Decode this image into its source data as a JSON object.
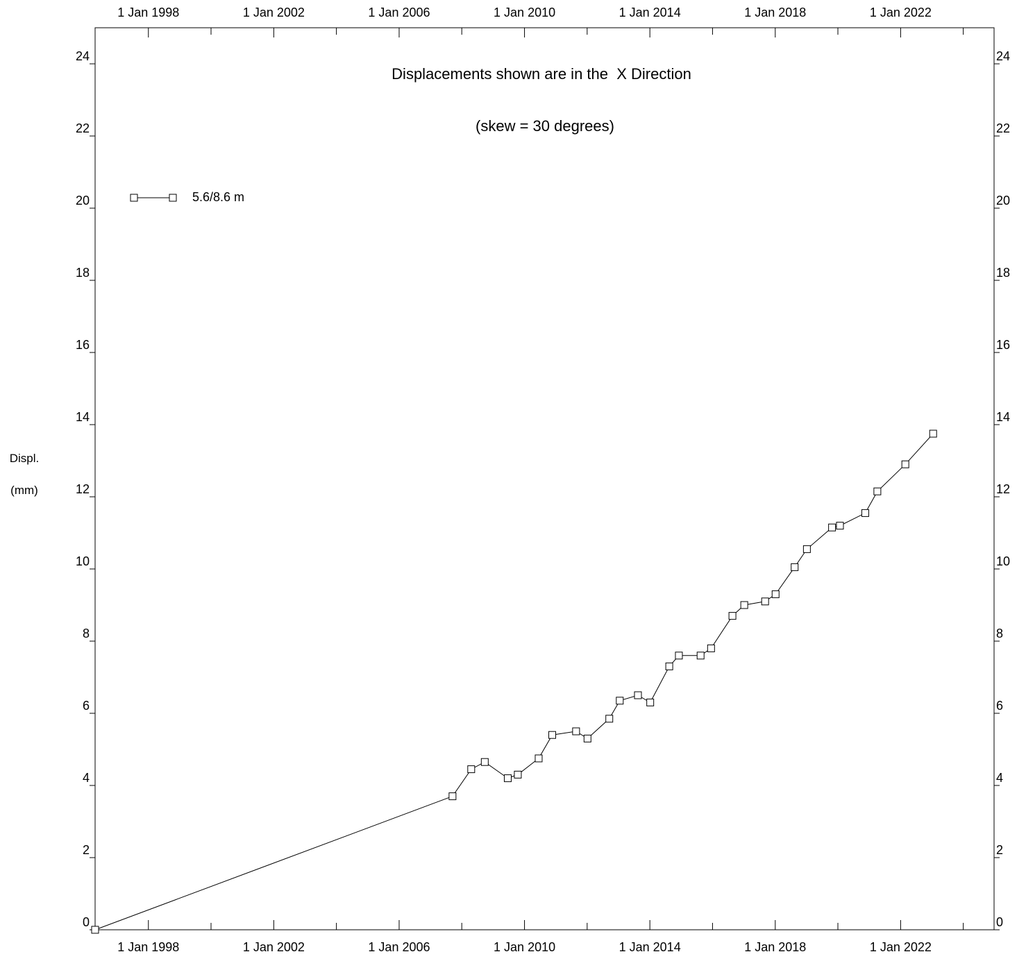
{
  "chart_data": {
    "type": "line",
    "title": "Displacements shown are in the  X Direction",
    "subtitle": "(skew = 30 degrees)",
    "ylabel_line1": "Displ.",
    "ylabel_line2": "(mm)",
    "xlabel": "",
    "xlim": [
      "1996-04-20",
      "2024-12-25"
    ],
    "ylim": [
      0,
      25
    ],
    "x_tick_labels": [
      "1 Jan 1998",
      "1 Jan 2002",
      "1 Jan 2006",
      "1 Jan 2010",
      "1 Jan 2014",
      "1 Jan 2018",
      "1 Jan 2022"
    ],
    "x_tick_dates": [
      "1998-01-01",
      "2002-01-01",
      "2006-01-01",
      "2010-01-01",
      "2014-01-01",
      "2018-01-01",
      "2022-01-01"
    ],
    "x_minor_tick_dates": [
      "2000-01-01",
      "2004-01-01",
      "2008-01-01",
      "2012-01-01",
      "2016-01-01",
      "2020-01-01",
      "2024-01-01"
    ],
    "y_ticks": [
      0,
      2,
      4,
      6,
      8,
      10,
      12,
      14,
      16,
      18,
      20,
      22,
      24
    ],
    "y_tick_labels": [
      "0",
      "2",
      "4",
      "6",
      "8",
      "10",
      "12",
      "14",
      "16",
      "18",
      "20",
      "22",
      "24"
    ],
    "grid": false,
    "legend_position": "top-left",
    "marker": "square",
    "colors": {
      "line": "#000000",
      "marker": "#000000",
      "background": "#ffffff"
    },
    "series": [
      {
        "name": "5.6/8.6 m",
        "x": [
          "1996-04-20",
          "2007-09-15",
          "2008-04-20",
          "2008-09-25",
          "2009-06-20",
          "2009-10-15",
          "2010-06-15",
          "2010-11-20",
          "2011-08-25",
          "2012-01-05",
          "2012-09-15",
          "2013-01-15",
          "2013-08-15",
          "2014-01-05",
          "2014-08-15",
          "2014-12-05",
          "2015-08-15",
          "2015-12-15",
          "2016-08-20",
          "2017-01-05",
          "2017-09-05",
          "2018-01-05",
          "2018-08-15",
          "2019-01-05",
          "2019-10-25",
          "2020-01-25",
          "2020-11-15",
          "2021-04-05",
          "2022-02-25",
          "2023-01-15"
        ],
        "y": [
          0.0,
          3.7,
          4.45,
          4.65,
          4.2,
          4.3,
          4.75,
          5.4,
          5.5,
          5.3,
          5.85,
          6.35,
          6.5,
          6.3,
          7.3,
          7.6,
          7.6,
          7.8,
          8.7,
          9.0,
          9.1,
          9.3,
          10.05,
          10.55,
          11.15,
          11.2,
          11.55,
          12.15,
          12.9,
          13.75
        ]
      }
    ]
  }
}
